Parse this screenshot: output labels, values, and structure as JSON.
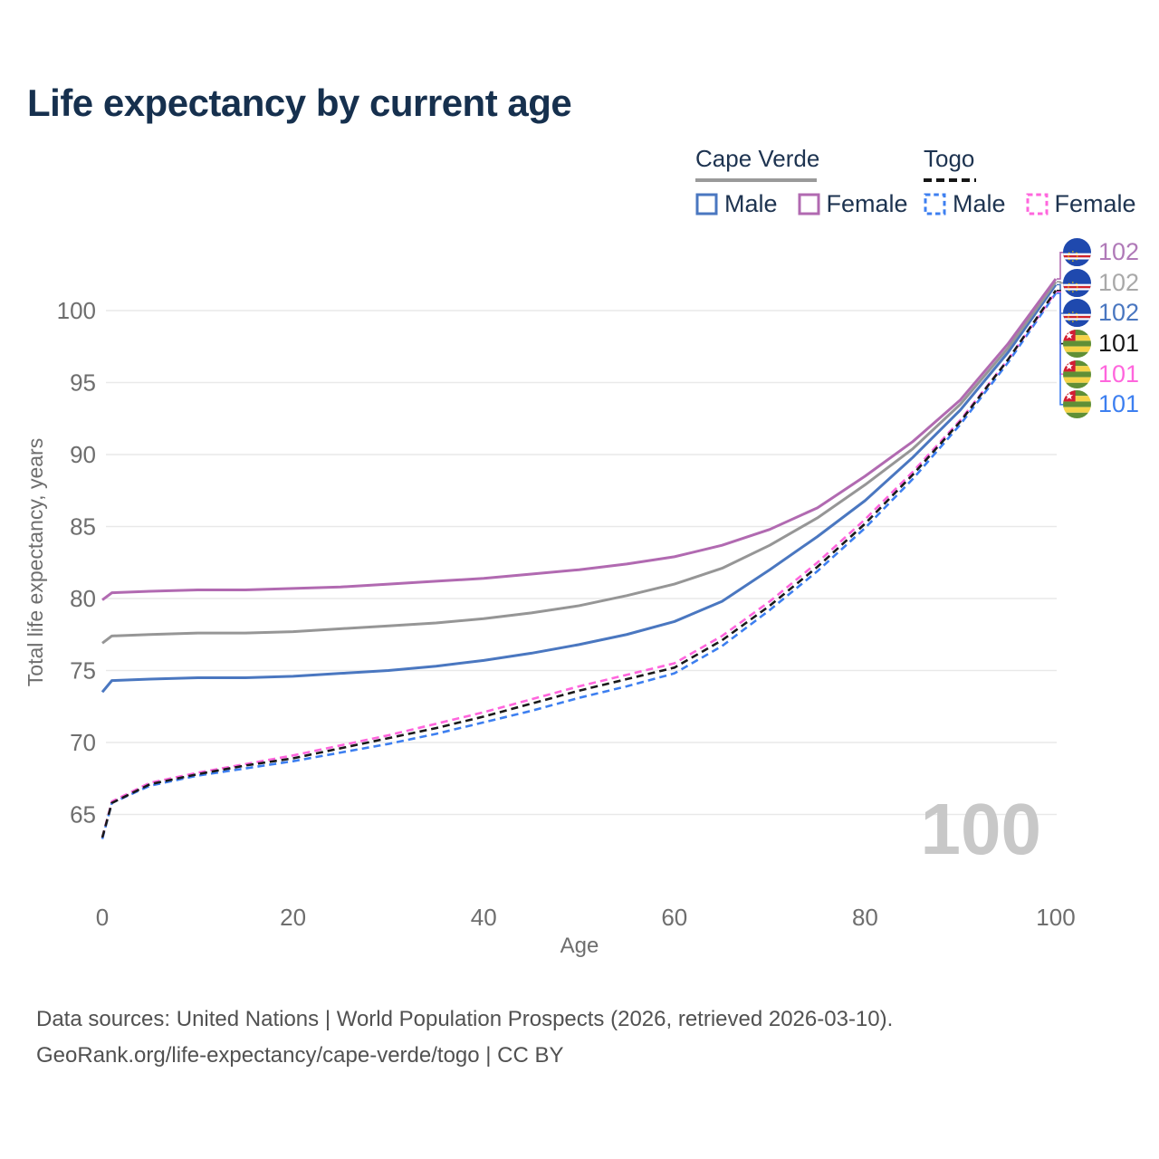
{
  "title": "Life expectancy by current age",
  "legend": {
    "cape_verde": {
      "name": "Cape Verde",
      "male": "Male",
      "female": "Female"
    },
    "togo": {
      "name": "Togo",
      "male": "Male",
      "female": "Female"
    }
  },
  "colors": {
    "cape_verde_female": "#b16ab1",
    "cape_verde_average": "#969696",
    "cape_verde_male": "#4a77c0",
    "togo_average": "#1a1a1a",
    "togo_female": "#ff66dd",
    "togo_male": "#3d7ff0",
    "title_text": "#16304e",
    "axis_text": "#6e6e6e",
    "gridline": "#e9e9e9",
    "watermark": "#c8c8c8"
  },
  "watermark": "100",
  "chart_data": {
    "type": "line",
    "title": "Life expectancy by current age",
    "xlabel": "Age",
    "ylabel": "Total life expectancy, years",
    "xlim": [
      0,
      100
    ],
    "ylim": [
      63,
      103
    ],
    "xticks": [
      0,
      20,
      40,
      60,
      80,
      100
    ],
    "yticks": [
      65,
      70,
      75,
      80,
      85,
      90,
      95,
      100
    ],
    "grid": "horizontal",
    "legend_position": "top-right",
    "x": [
      0,
      1,
      5,
      10,
      15,
      20,
      25,
      30,
      35,
      40,
      45,
      50,
      55,
      60,
      65,
      70,
      75,
      80,
      85,
      90,
      95,
      100
    ],
    "series": [
      {
        "name": "Cape Verde Female",
        "country": "Cape Verde",
        "sex": "female",
        "color": "#b16ab1",
        "style": "solid",
        "values": [
          79.9,
          80.4,
          80.5,
          80.6,
          80.6,
          80.7,
          80.8,
          81.0,
          81.2,
          81.4,
          81.7,
          82.0,
          82.4,
          82.9,
          83.7,
          84.8,
          86.3,
          88.5,
          90.9,
          93.8,
          97.7,
          102.2
        ],
        "end_label": "102"
      },
      {
        "name": "Cape Verde Average",
        "country": "Cape Verde",
        "sex": "all",
        "color": "#969696",
        "style": "solid",
        "values": [
          76.9,
          77.4,
          77.5,
          77.6,
          77.6,
          77.7,
          77.9,
          78.1,
          78.3,
          78.6,
          79.0,
          79.5,
          80.2,
          81.0,
          82.1,
          83.7,
          85.6,
          87.9,
          90.4,
          93.5,
          97.4,
          102.0
        ],
        "end_label": "102"
      },
      {
        "name": "Cape Verde Male",
        "country": "Cape Verde",
        "sex": "male",
        "color": "#4a77c0",
        "style": "solid",
        "values": [
          73.5,
          74.3,
          74.4,
          74.5,
          74.5,
          74.6,
          74.8,
          75.0,
          75.3,
          75.7,
          76.2,
          76.8,
          77.5,
          78.4,
          79.8,
          82.0,
          84.3,
          86.8,
          89.8,
          93.1,
          97.1,
          101.8
        ],
        "end_label": "102"
      },
      {
        "name": "Togo Average",
        "country": "Togo",
        "sex": "all",
        "color": "#1a1a1a",
        "style": "dashed",
        "values": [
          63.4,
          65.8,
          67.1,
          67.8,
          68.4,
          68.9,
          69.6,
          70.3,
          71.0,
          71.8,
          72.7,
          73.6,
          74.4,
          75.2,
          77.1,
          79.5,
          82.2,
          85.2,
          88.6,
          92.3,
          96.6,
          101.4
        ],
        "end_label": "101"
      },
      {
        "name": "Togo Female",
        "country": "Togo",
        "sex": "female",
        "color": "#ff66dd",
        "style": "dashed",
        "values": [
          63.4,
          65.9,
          67.2,
          67.9,
          68.5,
          69.1,
          69.8,
          70.5,
          71.3,
          72.1,
          73.0,
          73.9,
          74.7,
          75.5,
          77.4,
          79.8,
          82.5,
          85.5,
          88.8,
          92.4,
          96.6,
          101.3
        ],
        "end_label": "101"
      },
      {
        "name": "Togo Male",
        "country": "Togo",
        "sex": "male",
        "color": "#3d7ff0",
        "style": "dashed",
        "values": [
          63.3,
          65.8,
          67.0,
          67.7,
          68.2,
          68.7,
          69.3,
          69.9,
          70.6,
          71.4,
          72.2,
          73.1,
          73.9,
          74.8,
          76.7,
          79.2,
          81.9,
          84.9,
          88.3,
          92.1,
          96.4,
          101.2
        ],
        "end_label": "101"
      }
    ]
  },
  "right_labels": [
    {
      "country": "Cape Verde",
      "flag": "cape-verde-flag-icon",
      "value": "102",
      "color": "#b07ab8"
    },
    {
      "country": "Cape Verde",
      "flag": "cape-verde-flag-icon",
      "value": "102",
      "color": "#a9a9a9"
    },
    {
      "country": "Cape Verde",
      "flag": "cape-verde-flag-icon",
      "value": "102",
      "color": "#4a77c0"
    },
    {
      "country": "Togo",
      "flag": "togo-flag-icon",
      "value": "101",
      "color": "#1a1a1a"
    },
    {
      "country": "Togo",
      "flag": "togo-flag-icon",
      "value": "101",
      "color": "#ff66dd"
    },
    {
      "country": "Togo",
      "flag": "togo-flag-icon",
      "value": "101",
      "color": "#3d7ff0"
    }
  ],
  "footer": {
    "line1": "Data sources: United Nations | World Population Prospects (2026, retrieved 2026-03-10).",
    "line2": "GeoRank.org/life-expectancy/cape-verde/togo | CC BY"
  }
}
